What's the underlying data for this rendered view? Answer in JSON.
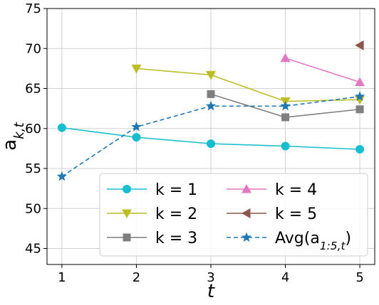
{
  "chart_data": {
    "type": "line",
    "x": [
      1,
      2,
      3,
      4,
      5
    ],
    "xlabel": "t",
    "ylabel": "a_{k,t}",
    "xlim": [
      0.8,
      5.2
    ],
    "ylim": [
      43,
      75
    ],
    "xticks": [
      "1",
      "2",
      "3",
      "4",
      "5"
    ],
    "yticks": [
      "45",
      "50",
      "55",
      "60",
      "65",
      "70",
      "75"
    ],
    "grid": true,
    "legend_position": "bottom-right",
    "series": [
      {
        "name": "k = 1",
        "color": "#17becf",
        "marker": "circle",
        "dashed": false,
        "x": [
          1,
          2,
          3,
          4,
          5
        ],
        "values": [
          60.1,
          58.9,
          58.1,
          57.8,
          57.4
        ]
      },
      {
        "name": "k = 2",
        "color": "#bcbd22",
        "marker": "triangle-down",
        "dashed": false,
        "x": [
          2,
          3,
          4,
          5
        ],
        "values": [
          67.5,
          66.7,
          63.4,
          63.6
        ]
      },
      {
        "name": "k = 3",
        "color": "#7f7f7f",
        "marker": "square",
        "dashed": false,
        "x": [
          3,
          4,
          5
        ],
        "values": [
          64.3,
          61.4,
          62.4
        ]
      },
      {
        "name": "k = 4",
        "color": "#e377c2",
        "marker": "triangle-up",
        "dashed": false,
        "x": [
          4,
          5
        ],
        "values": [
          68.8,
          65.8
        ]
      },
      {
        "name": "k = 5",
        "color": "#8c564b",
        "marker": "triangle-left",
        "dashed": false,
        "x": [
          5
        ],
        "values": [
          70.4
        ]
      },
      {
        "name": "Avg(a_{1:5,t})",
        "color": "#1f77b4",
        "marker": "star",
        "dashed": true,
        "x": [
          1,
          2,
          3,
          4,
          5
        ],
        "values": [
          54.0,
          60.2,
          62.8,
          62.8,
          64.0
        ]
      }
    ]
  }
}
